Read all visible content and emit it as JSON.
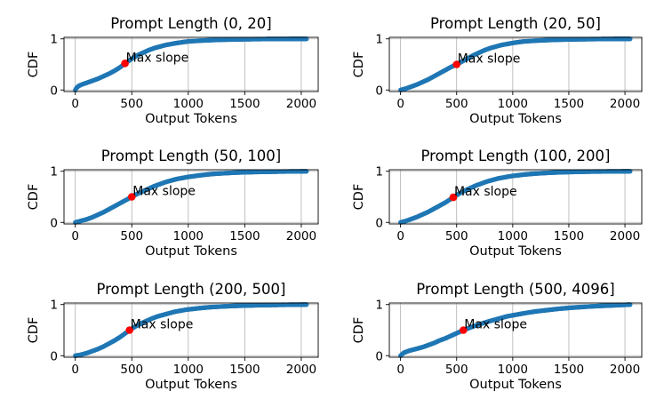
{
  "chart_data": [
    {
      "type": "scatter",
      "title": "Prompt Length (0, 20]",
      "xlabel": "Output Tokens",
      "ylabel": "CDF",
      "xlim": [
        -100,
        2150
      ],
      "ylim": [
        -0.03,
        1.03
      ],
      "xticks": [
        0,
        500,
        1000,
        1500,
        2000
      ],
      "yticks": [
        0,
        1
      ],
      "grid": true,
      "color": "#1f77b4",
      "marker_color": "#ff0000",
      "annotation": {
        "text": "Max slope",
        "x": 440,
        "y": 0.52
      },
      "points": [
        [
          0,
          0
        ],
        [
          10,
          0.04
        ],
        [
          30,
          0.08
        ],
        [
          60,
          0.11
        ],
        [
          100,
          0.14
        ],
        [
          150,
          0.18
        ],
        [
          200,
          0.22
        ],
        [
          250,
          0.27
        ],
        [
          300,
          0.32
        ],
        [
          350,
          0.38
        ],
        [
          400,
          0.45
        ],
        [
          440,
          0.52
        ],
        [
          480,
          0.58
        ],
        [
          520,
          0.64
        ],
        [
          560,
          0.69
        ],
        [
          600,
          0.73
        ],
        [
          650,
          0.78
        ],
        [
          700,
          0.82
        ],
        [
          750,
          0.85
        ],
        [
          800,
          0.88
        ],
        [
          850,
          0.9
        ],
        [
          900,
          0.92
        ],
        [
          950,
          0.935
        ],
        [
          1000,
          0.95
        ],
        [
          1100,
          0.965
        ],
        [
          1200,
          0.975
        ],
        [
          1300,
          0.983
        ],
        [
          1400,
          0.988
        ],
        [
          1500,
          0.992
        ],
        [
          1600,
          0.995
        ],
        [
          1700,
          0.997
        ],
        [
          1800,
          0.998
        ],
        [
          1900,
          0.999
        ],
        [
          2048,
          1.0
        ]
      ]
    },
    {
      "type": "scatter",
      "title": "Prompt Length (20, 50]",
      "xlabel": "Output Tokens",
      "ylabel": "CDF",
      "xlim": [
        -100,
        2150
      ],
      "ylim": [
        -0.03,
        1.03
      ],
      "xticks": [
        0,
        500,
        1000,
        1500,
        2000
      ],
      "yticks": [
        0,
        1
      ],
      "grid": true,
      "color": "#1f77b4",
      "marker_color": "#ff0000",
      "annotation": {
        "text": "Max slope",
        "x": 500,
        "y": 0.5
      },
      "points": [
        [
          0,
          0
        ],
        [
          50,
          0.03
        ],
        [
          100,
          0.07
        ],
        [
          150,
          0.11
        ],
        [
          200,
          0.16
        ],
        [
          250,
          0.21
        ],
        [
          300,
          0.27
        ],
        [
          350,
          0.33
        ],
        [
          400,
          0.39
        ],
        [
          450,
          0.45
        ],
        [
          500,
          0.5
        ],
        [
          550,
          0.56
        ],
        [
          600,
          0.62
        ],
        [
          650,
          0.68
        ],
        [
          700,
          0.73
        ],
        [
          750,
          0.78
        ],
        [
          800,
          0.82
        ],
        [
          850,
          0.85
        ],
        [
          900,
          0.88
        ],
        [
          950,
          0.9
        ],
        [
          1000,
          0.92
        ],
        [
          1100,
          0.95
        ],
        [
          1200,
          0.965
        ],
        [
          1300,
          0.975
        ],
        [
          1400,
          0.983
        ],
        [
          1500,
          0.988
        ],
        [
          1600,
          0.992
        ],
        [
          1700,
          0.995
        ],
        [
          1800,
          0.997
        ],
        [
          1900,
          0.999
        ],
        [
          2048,
          1.0
        ]
      ]
    },
    {
      "type": "scatter",
      "title": "Prompt Length (50, 100]",
      "xlabel": "Output Tokens",
      "ylabel": "CDF",
      "xlim": [
        -100,
        2150
      ],
      "ylim": [
        -0.03,
        1.03
      ],
      "xticks": [
        0,
        500,
        1000,
        1500,
        2000
      ],
      "yticks": [
        0,
        1
      ],
      "grid": true,
      "color": "#1f77b4",
      "marker_color": "#ff0000",
      "annotation": {
        "text": "Max slope",
        "x": 500,
        "y": 0.5
      },
      "points": [
        [
          0,
          0
        ],
        [
          50,
          0.03
        ],
        [
          100,
          0.06
        ],
        [
          150,
          0.1
        ],
        [
          200,
          0.15
        ],
        [
          250,
          0.2
        ],
        [
          300,
          0.26
        ],
        [
          350,
          0.32
        ],
        [
          400,
          0.38
        ],
        [
          450,
          0.44
        ],
        [
          500,
          0.5
        ],
        [
          550,
          0.56
        ],
        [
          600,
          0.61
        ],
        [
          650,
          0.66
        ],
        [
          700,
          0.71
        ],
        [
          750,
          0.75
        ],
        [
          800,
          0.79
        ],
        [
          850,
          0.82
        ],
        [
          900,
          0.85
        ],
        [
          950,
          0.87
        ],
        [
          1000,
          0.89
        ],
        [
          1100,
          0.92
        ],
        [
          1200,
          0.945
        ],
        [
          1300,
          0.96
        ],
        [
          1400,
          0.972
        ],
        [
          1500,
          0.98
        ],
        [
          1600,
          0.986
        ],
        [
          1700,
          0.99
        ],
        [
          1800,
          0.994
        ],
        [
          1900,
          0.997
        ],
        [
          2048,
          1.0
        ]
      ]
    },
    {
      "type": "scatter",
      "title": "Prompt Length (100, 200]",
      "xlabel": "Output Tokens",
      "ylabel": "CDF",
      "xlim": [
        -100,
        2150
      ],
      "ylim": [
        -0.03,
        1.03
      ],
      "xticks": [
        0,
        500,
        1000,
        1500,
        2000
      ],
      "yticks": [
        0,
        1
      ],
      "grid": true,
      "color": "#1f77b4",
      "marker_color": "#ff0000",
      "annotation": {
        "text": "Max slope",
        "x": 470,
        "y": 0.49
      },
      "points": [
        [
          0,
          0
        ],
        [
          50,
          0.03
        ],
        [
          100,
          0.07
        ],
        [
          150,
          0.11
        ],
        [
          200,
          0.16
        ],
        [
          250,
          0.21
        ],
        [
          300,
          0.27
        ],
        [
          350,
          0.33
        ],
        [
          400,
          0.39
        ],
        [
          470,
          0.49
        ],
        [
          520,
          0.56
        ],
        [
          570,
          0.62
        ],
        [
          620,
          0.67
        ],
        [
          670,
          0.72
        ],
        [
          720,
          0.76
        ],
        [
          770,
          0.8
        ],
        [
          820,
          0.83
        ],
        [
          870,
          0.86
        ],
        [
          920,
          0.88
        ],
        [
          970,
          0.9
        ],
        [
          1000,
          0.91
        ],
        [
          1100,
          0.935
        ],
        [
          1200,
          0.955
        ],
        [
          1300,
          0.968
        ],
        [
          1400,
          0.978
        ],
        [
          1500,
          0.985
        ],
        [
          1600,
          0.99
        ],
        [
          1700,
          0.994
        ],
        [
          1800,
          0.996
        ],
        [
          1900,
          0.998
        ],
        [
          2048,
          1.0
        ]
      ]
    },
    {
      "type": "scatter",
      "title": "Prompt Length (200, 500]",
      "xlabel": "Output Tokens",
      "ylabel": "CDF",
      "xlim": [
        -100,
        2150
      ],
      "ylim": [
        -0.03,
        1.03
      ],
      "xticks": [
        0,
        500,
        1000,
        1500,
        2000
      ],
      "yticks": [
        0,
        1
      ],
      "grid": true,
      "color": "#1f77b4",
      "marker_color": "#ff0000",
      "annotation": {
        "text": "Max slope",
        "x": 480,
        "y": 0.5
      },
      "points": [
        [
          0,
          0
        ],
        [
          50,
          0.02
        ],
        [
          100,
          0.05
        ],
        [
          150,
          0.09
        ],
        [
          200,
          0.13
        ],
        [
          250,
          0.18
        ],
        [
          300,
          0.24
        ],
        [
          350,
          0.3
        ],
        [
          400,
          0.37
        ],
        [
          480,
          0.5
        ],
        [
          530,
          0.57
        ],
        [
          580,
          0.63
        ],
        [
          630,
          0.68
        ],
        [
          680,
          0.73
        ],
        [
          730,
          0.77
        ],
        [
          780,
          0.8
        ],
        [
          830,
          0.83
        ],
        [
          880,
          0.86
        ],
        [
          930,
          0.88
        ],
        [
          980,
          0.9
        ],
        [
          1000,
          0.905
        ],
        [
          1100,
          0.93
        ],
        [
          1200,
          0.95
        ],
        [
          1300,
          0.963
        ],
        [
          1400,
          0.973
        ],
        [
          1500,
          0.98
        ],
        [
          1600,
          0.986
        ],
        [
          1700,
          0.99
        ],
        [
          1800,
          0.994
        ],
        [
          1900,
          0.997
        ],
        [
          2048,
          1.0
        ]
      ]
    },
    {
      "type": "scatter",
      "title": "Prompt Length (500, 4096]",
      "xlabel": "Output Tokens",
      "ylabel": "CDF",
      "xlim": [
        -100,
        2150
      ],
      "ylim": [
        -0.03,
        1.03
      ],
      "xticks": [
        0,
        500,
        1000,
        1500,
        2000
      ],
      "yticks": [
        0,
        1
      ],
      "grid": true,
      "color": "#1f77b4",
      "marker_color": "#ff0000",
      "annotation": {
        "text": "Max slope",
        "x": 560,
        "y": 0.5
      },
      "points": [
        [
          0,
          0
        ],
        [
          30,
          0.06
        ],
        [
          80,
          0.1
        ],
        [
          150,
          0.14
        ],
        [
          200,
          0.17
        ],
        [
          250,
          0.21
        ],
        [
          300,
          0.25
        ],
        [
          350,
          0.3
        ],
        [
          400,
          0.34
        ],
        [
          450,
          0.39
        ],
        [
          500,
          0.44
        ],
        [
          560,
          0.5
        ],
        [
          620,
          0.55
        ],
        [
          680,
          0.6
        ],
        [
          740,
          0.64
        ],
        [
          800,
          0.68
        ],
        [
          850,
          0.71
        ],
        [
          900,
          0.74
        ],
        [
          950,
          0.77
        ],
        [
          1000,
          0.79
        ],
        [
          1100,
          0.83
        ],
        [
          1200,
          0.865
        ],
        [
          1300,
          0.89
        ],
        [
          1400,
          0.915
        ],
        [
          1500,
          0.935
        ],
        [
          1600,
          0.95
        ],
        [
          1700,
          0.965
        ],
        [
          1800,
          0.975
        ],
        [
          1900,
          0.985
        ],
        [
          2048,
          1.0
        ]
      ]
    }
  ]
}
